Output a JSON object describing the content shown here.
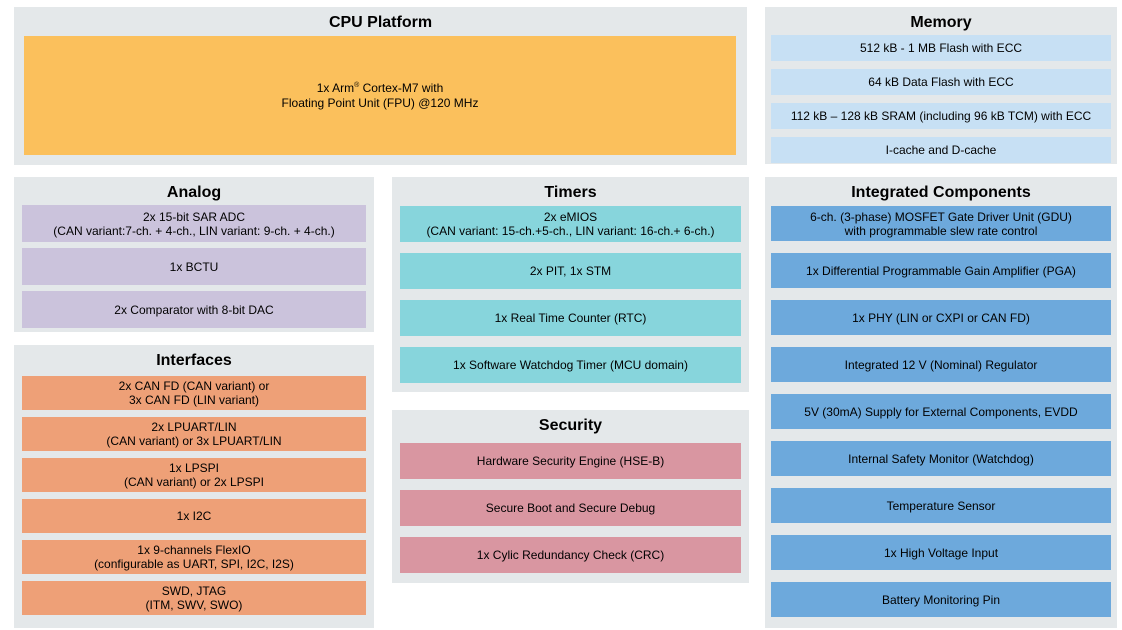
{
  "colors": {
    "page_background": "#ffffff",
    "panel_background": "#e4e8ea",
    "cpu_block": "#fbc05c",
    "memory_row": "#c7e0f4",
    "analog_row": "#cbc3dc",
    "interfaces_row": "#eea077",
    "timers_row": "#87d5dc",
    "security_row": "#d996a1",
    "integrated_row": "#6da9dc",
    "text": "#000000"
  },
  "sections": {
    "cpu": {
      "title": "CPU Platform",
      "block": {
        "line1_pre": "1x Arm",
        "reg": "®",
        "line1_post": " Cortex-M7 with",
        "line2": "Floating Point Unit (FPU) @120 MHz"
      }
    },
    "memory": {
      "title": "Memory",
      "rows": [
        "512 kB - 1 MB Flash with ECC",
        "64 kB Data Flash with ECC",
        "112 kB – 128 kB SRAM (including 96 kB TCM) with ECC",
        "I-cache and D-cache"
      ]
    },
    "analog": {
      "title": "Analog",
      "rows": [
        "2x 15-bit SAR ADC\n(CAN variant:7-ch. + 4-ch., LIN variant: 9-ch. + 4-ch.)",
        "1x BCTU",
        "2x Comparator with 8-bit DAC"
      ]
    },
    "interfaces": {
      "title": "Interfaces",
      "rows": [
        "2x CAN FD (CAN variant) or\n3x CAN FD (LIN variant)",
        "2x LPUART/LIN\n(CAN variant) or 3x LPUART/LIN",
        "1x LPSPI\n(CAN variant) or 2x LPSPI",
        "1x I2C",
        "1x 9-channels FlexIO\n(configurable as UART, SPI, I2C, I2S)",
        "SWD, JTAG\n(ITM, SWV, SWO)"
      ]
    },
    "timers": {
      "title": "Timers",
      "rows": [
        "2x eMIOS\n(CAN variant: 15-ch.+5-ch., LIN variant: 16-ch.+ 6-ch.)",
        "2x PIT, 1x STM",
        "1x Real Time Counter (RTC)",
        "1x Software Watchdog Timer (MCU domain)"
      ]
    },
    "security": {
      "title": "Security",
      "rows": [
        "Hardware Security Engine (HSE-B)",
        "Secure Boot and Secure Debug",
        "1x Cylic Redundancy Check (CRC)"
      ]
    },
    "integrated": {
      "title": "Integrated Components",
      "rows": [
        "6-ch. (3-phase) MOSFET Gate Driver Unit (GDU)\nwith programmable slew rate control",
        "1x Differential Programmable Gain Amplifier (PGA)",
        "1x PHY (LIN or CXPI or CAN FD)",
        "Integrated 12 V (Nominal) Regulator",
        "5V (30mA) Supply for External Components, EVDD",
        "Internal Safety Monitor (Watchdog)",
        "Temperature Sensor",
        "1x High Voltage Input",
        "Battery Monitoring Pin"
      ]
    }
  }
}
